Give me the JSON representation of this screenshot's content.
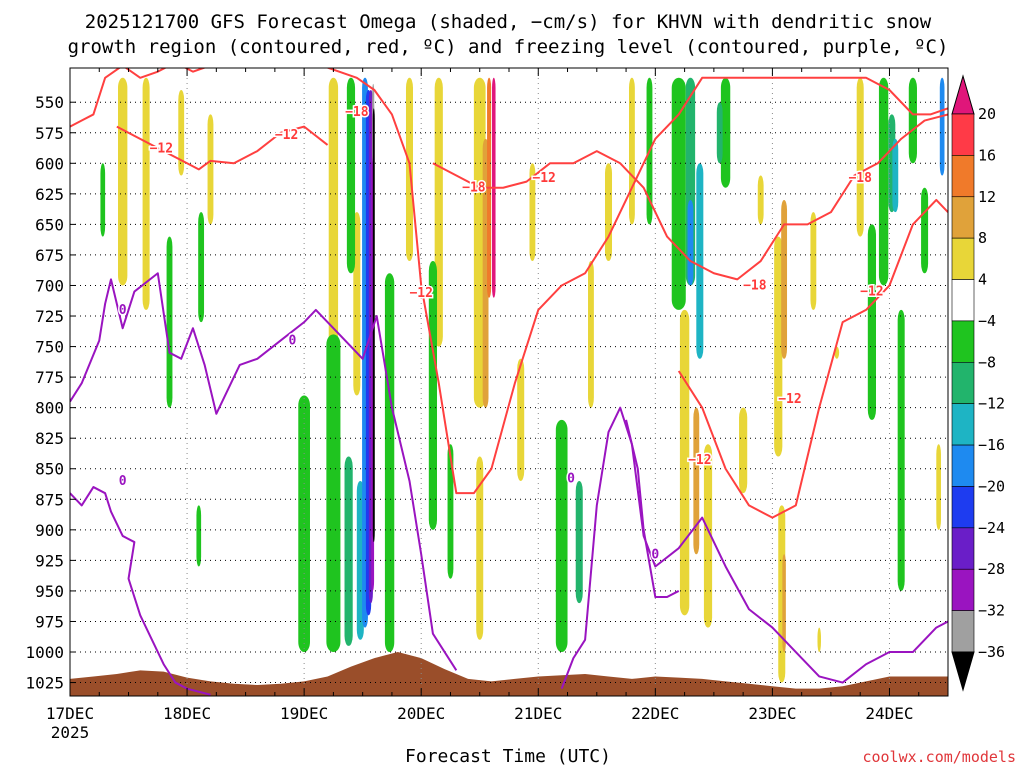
{
  "chart_data": {
    "type": "heatmap",
    "title_line1": "2025121700 GFS Forecast Omega (shaded, −cm/s) for KHVN with dendritic snow",
    "title_line2": "growth region (contoured, red, ºC) and freezing level (contoured, purple, ºC)",
    "xlabel": "Forecast Time (UTC)",
    "credit": "coolwx.com/models",
    "x_start_label": "17DEC",
    "x_year_label": "2025",
    "x_days": [
      "18DEC",
      "19DEC",
      "20DEC",
      "21DEC",
      "22DEC",
      "23DEC",
      "24DEC"
    ],
    "x_range_days": [
      0,
      7.5
    ],
    "y_levels": [
      550,
      575,
      600,
      625,
      650,
      675,
      700,
      725,
      750,
      775,
      800,
      825,
      850,
      875,
      900,
      925,
      950,
      975,
      1000,
      1025
    ],
    "y_range_hpa": [
      522,
      1036
    ],
    "colorbar": {
      "ticks": [
        "20",
        "16",
        "12",
        "8",
        "4",
        "−4",
        "−8",
        "−12",
        "−16",
        "−20",
        "−24",
        "−28",
        "−32",
        "−36"
      ],
      "bins": [
        {
          "from": 20,
          "to": 16,
          "color": "#ff3a47"
        },
        {
          "from": 16,
          "to": 12,
          "color": "#f07a2a"
        },
        {
          "from": 12,
          "to": 8,
          "color": "#e0a23a"
        },
        {
          "from": 8,
          "to": 4,
          "color": "#e8d638"
        },
        {
          "from": 4,
          "to": -4,
          "color": "#ffffff"
        },
        {
          "from": -4,
          "to": -8,
          "color": "#1fc41f"
        },
        {
          "from": -8,
          "to": -12,
          "color": "#22b46c"
        },
        {
          "from": -12,
          "to": -16,
          "color": "#1eb4c4"
        },
        {
          "from": -16,
          "to": -20,
          "color": "#1e8af0"
        },
        {
          "from": -20,
          "to": -24,
          "color": "#1e3cf0"
        },
        {
          "from": -24,
          "to": -28,
          "color": "#6a1ec8"
        },
        {
          "from": -28,
          "to": -32,
          "color": "#9a14c0"
        },
        {
          "from": -32,
          "to": -36,
          "color": "#a0a0a0"
        }
      ],
      "top_arrow_color": "#e0167a",
      "bottom_arrow_color": "#000000"
    },
    "omega_fields": [
      {
        "day": 0.45,
        "width": 0.08,
        "top": 530,
        "bottom": 700,
        "value": 6
      },
      {
        "day": 0.65,
        "width": 0.06,
        "top": 530,
        "bottom": 720,
        "value": 5
      },
      {
        "day": 0.95,
        "width": 0.05,
        "top": 540,
        "bottom": 610,
        "value": 5
      },
      {
        "day": 1.2,
        "width": 0.05,
        "top": 560,
        "bottom": 650,
        "value": 5
      },
      {
        "day": 0.28,
        "width": 0.04,
        "top": 600,
        "bottom": 660,
        "value": -6
      },
      {
        "day": 0.85,
        "width": 0.05,
        "top": 660,
        "bottom": 800,
        "value": -6
      },
      {
        "day": 1.12,
        "width": 0.05,
        "top": 640,
        "bottom": 730,
        "value": -6
      },
      {
        "day": 1.1,
        "width": 0.04,
        "top": 880,
        "bottom": 930,
        "value": -6
      },
      {
        "day": 2.25,
        "width": 0.08,
        "top": 530,
        "bottom": 760,
        "value": 5
      },
      {
        "day": 2.45,
        "width": 0.06,
        "top": 640,
        "bottom": 790,
        "value": 5
      },
      {
        "day": 2.0,
        "width": 0.1,
        "top": 790,
        "bottom": 1000,
        "value": -6
      },
      {
        "day": 2.25,
        "width": 0.12,
        "top": 740,
        "bottom": 1000,
        "value": -7
      },
      {
        "day": 2.38,
        "width": 0.07,
        "top": 840,
        "bottom": 995,
        "value": -10
      },
      {
        "day": 2.4,
        "width": 0.07,
        "top": 530,
        "bottom": 690,
        "value": -7
      },
      {
        "day": 2.48,
        "width": 0.06,
        "top": 860,
        "bottom": 990,
        "value": -14
      },
      {
        "day": 2.52,
        "width": 0.05,
        "top": 530,
        "bottom": 980,
        "value": -18
      },
      {
        "day": 2.55,
        "width": 0.045,
        "top": 540,
        "bottom": 970,
        "value": -22
      },
      {
        "day": 2.57,
        "width": 0.035,
        "top": 540,
        "bottom": 960,
        "value": -26
      },
      {
        "day": 2.585,
        "width": 0.025,
        "top": 545,
        "bottom": 950,
        "value": -30
      },
      {
        "day": 2.59,
        "width": 0.018,
        "top": 535,
        "bottom": 600,
        "value": -34
      },
      {
        "day": 2.595,
        "width": 0.017,
        "top": 555,
        "bottom": 910,
        "value": -40
      },
      {
        "day": 2.73,
        "width": 0.08,
        "top": 690,
        "bottom": 1000,
        "value": -6
      },
      {
        "day": 2.9,
        "width": 0.06,
        "top": 530,
        "bottom": 680,
        "value": 6
      },
      {
        "day": 3.15,
        "width": 0.07,
        "top": 530,
        "bottom": 750,
        "value": 5
      },
      {
        "day": 3.1,
        "width": 0.07,
        "top": 680,
        "bottom": 900,
        "value": -6
      },
      {
        "day": 3.5,
        "width": 0.1,
        "top": 530,
        "bottom": 800,
        "value": 6
      },
      {
        "day": 3.55,
        "width": 0.05,
        "top": 580,
        "bottom": 800,
        "value": 10
      },
      {
        "day": 3.58,
        "width": 0.035,
        "top": 530,
        "bottom": 710,
        "value": 14
      },
      {
        "day": 3.62,
        "width": 0.03,
        "top": 530,
        "bottom": 710,
        "value": 22
      },
      {
        "day": 3.25,
        "width": 0.05,
        "top": 830,
        "bottom": 940,
        "value": -6
      },
      {
        "day": 3.5,
        "width": 0.06,
        "top": 840,
        "bottom": 990,
        "value": 5
      },
      {
        "day": 3.85,
        "width": 0.06,
        "top": 760,
        "bottom": 860,
        "value": 5
      },
      {
        "day": 4.2,
        "width": 0.1,
        "top": 810,
        "bottom": 1000,
        "value": -6
      },
      {
        "day": 4.35,
        "width": 0.06,
        "top": 860,
        "bottom": 960,
        "value": -9
      },
      {
        "day": 4.45,
        "width": 0.05,
        "top": 680,
        "bottom": 800,
        "value": 5
      },
      {
        "day": 3.95,
        "width": 0.05,
        "top": 600,
        "bottom": 680,
        "value": 5
      },
      {
        "day": 4.6,
        "width": 0.06,
        "top": 600,
        "bottom": 680,
        "value": 5
      },
      {
        "day": 4.8,
        "width": 0.05,
        "top": 530,
        "bottom": 650,
        "value": 5
      },
      {
        "day": 4.95,
        "width": 0.05,
        "top": 530,
        "bottom": 650,
        "value": -6
      },
      {
        "day": 5.2,
        "width": 0.12,
        "top": 530,
        "bottom": 720,
        "value": -7
      },
      {
        "day": 5.3,
        "width": 0.08,
        "top": 530,
        "bottom": 700,
        "value": -10
      },
      {
        "day": 5.38,
        "width": 0.06,
        "top": 600,
        "bottom": 760,
        "value": -14
      },
      {
        "day": 5.3,
        "width": 0.05,
        "top": 630,
        "bottom": 700,
        "value": -18
      },
      {
        "day": 5.25,
        "width": 0.08,
        "top": 720,
        "bottom": 970,
        "value": 6
      },
      {
        "day": 5.35,
        "width": 0.05,
        "top": 800,
        "bottom": 920,
        "value": 10
      },
      {
        "day": 5.45,
        "width": 0.07,
        "top": 830,
        "bottom": 980,
        "value": 5
      },
      {
        "day": 5.6,
        "width": 0.08,
        "top": 530,
        "bottom": 620,
        "value": -6
      },
      {
        "day": 5.55,
        "width": 0.05,
        "top": 550,
        "bottom": 600,
        "value": -9
      },
      {
        "day": 5.75,
        "width": 0.07,
        "top": 800,
        "bottom": 870,
        "value": 5
      },
      {
        "day": 5.9,
        "width": 0.05,
        "top": 610,
        "bottom": 650,
        "value": 5
      },
      {
        "day": 6.05,
        "width": 0.07,
        "top": 660,
        "bottom": 840,
        "value": 5
      },
      {
        "day": 6.1,
        "width": 0.05,
        "top": 630,
        "bottom": 760,
        "value": 10
      },
      {
        "day": 6.08,
        "width": 0.06,
        "top": 880,
        "bottom": 1025,
        "value": 5
      },
      {
        "day": 6.1,
        "width": 0.03,
        "top": 920,
        "bottom": 1000,
        "value": 10
      },
      {
        "day": 6.35,
        "width": 0.05,
        "top": 640,
        "bottom": 720,
        "value": 5
      },
      {
        "day": 6.4,
        "width": 0.03,
        "top": 980,
        "bottom": 1000,
        "value": 5
      },
      {
        "day": 6.55,
        "width": 0.04,
        "top": 750,
        "bottom": 760,
        "value": 5
      },
      {
        "day": 6.75,
        "width": 0.06,
        "top": 530,
        "bottom": 660,
        "value": 5
      },
      {
        "day": 6.85,
        "width": 0.07,
        "top": 650,
        "bottom": 810,
        "value": -6
      },
      {
        "day": 6.95,
        "width": 0.08,
        "top": 530,
        "bottom": 700,
        "value": -7
      },
      {
        "day": 7.02,
        "width": 0.06,
        "top": 560,
        "bottom": 640,
        "value": -10
      },
      {
        "day": 7.05,
        "width": 0.05,
        "top": 580,
        "bottom": 640,
        "value": -14
      },
      {
        "day": 7.1,
        "width": 0.06,
        "top": 720,
        "bottom": 950,
        "value": -6
      },
      {
        "day": 7.2,
        "width": 0.07,
        "top": 530,
        "bottom": 600,
        "value": -7
      },
      {
        "day": 7.3,
        "width": 0.06,
        "top": 620,
        "bottom": 690,
        "value": -7
      },
      {
        "day": 7.45,
        "width": 0.04,
        "top": 530,
        "bottom": 610,
        "value": -20
      },
      {
        "day": 7.42,
        "width": 0.04,
        "top": 830,
        "bottom": 900,
        "value": 5
      }
    ],
    "freezing_level_0C": [
      {
        "x": [
          0.0,
          0.1,
          0.25,
          0.3,
          0.35,
          0.45,
          0.55,
          0.75,
          0.85,
          0.95,
          1.05,
          1.15,
          1.25,
          1.45,
          1.6,
          1.8,
          2.0,
          2.1,
          2.3,
          2.5,
          2.62,
          2.75,
          2.9,
          3.0,
          3.1,
          3.3
        ],
        "p": [
          795,
          780,
          745,
          715,
          695,
          735,
          705,
          690,
          755,
          760,
          735,
          765,
          805,
          765,
          760,
          745,
          730,
          720,
          740,
          760,
          725,
          800,
          860,
          920,
          985,
          1015
        ]
      },
      {
        "x": [
          0.0,
          0.1,
          0.2,
          0.3,
          0.35,
          0.45,
          0.55,
          0.5,
          0.6,
          0.8,
          0.9,
          1.0,
          1.2
        ],
        "p": [
          870,
          880,
          865,
          870,
          885,
          905,
          910,
          940,
          970,
          1010,
          1025,
          1030,
          1035
        ]
      },
      {
        "x": [
          4.2,
          4.3,
          4.4,
          4.5,
          4.6,
          4.7,
          4.8,
          4.9,
          5.0,
          5.2,
          5.4,
          5.6,
          5.8,
          6.0,
          6.2,
          6.4,
          6.6,
          6.8,
          7.0,
          7.2,
          7.4,
          7.5
        ],
        "p": [
          1030,
          1005,
          990,
          880,
          820,
          800,
          830,
          905,
          930,
          915,
          890,
          930,
          965,
          980,
          1000,
          1020,
          1025,
          1010,
          1000,
          1000,
          980,
          975
        ]
      },
      {
        "x": [
          4.75,
          4.85,
          4.9,
          5.0,
          5.1,
          5.2
        ],
        "p": [
          810,
          850,
          900,
          955,
          955,
          950
        ]
      }
    ],
    "isotherm_minus12C": [
      {
        "x": [
          0.0,
          0.1,
          0.2,
          0.3,
          0.45,
          0.6,
          0.75,
          0.85,
          0.95,
          1.05,
          1.2,
          1.35,
          1.5,
          1.65,
          1.8,
          2.0,
          2.15,
          2.3,
          2.45,
          2.6,
          2.75,
          2.9,
          3.0,
          3.15,
          3.3,
          3.45,
          3.6,
          3.8,
          4.0,
          4.2,
          4.4,
          4.6,
          4.8,
          5.0,
          5.2,
          5.4,
          5.6,
          5.8,
          6.0,
          6.2,
          6.4,
          6.6,
          6.8,
          7.0,
          7.2,
          7.35,
          7.5
        ],
        "p": [
          570,
          565,
          560,
          530,
          520,
          530,
          525,
          520,
          520,
          525,
          520,
          518,
          516,
          518,
          520,
          518,
          520,
          525,
          530,
          540,
          560,
          600,
          700,
          780,
          870,
          870,
          850,
          780,
          720,
          700,
          690,
          660,
          620,
          580,
          560,
          530,
          530,
          530,
          530,
          530,
          530,
          530,
          530,
          540,
          560,
          560,
          555
        ]
      },
      {
        "x": [
          0.4,
          0.8,
          1.0,
          1.1,
          1.2,
          1.4,
          1.6,
          1.8,
          2.0,
          2.2
        ],
        "p": [
          570,
          590,
          600,
          605,
          598,
          600,
          590,
          575,
          570,
          585
        ]
      },
      {
        "x": [
          5.2,
          5.4,
          5.6,
          5.8,
          6.0,
          6.2,
          6.4,
          6.6,
          6.8,
          7.0,
          7.2,
          7.4,
          7.5
        ],
        "p": [
          770,
          800,
          850,
          880,
          890,
          880,
          800,
          730,
          720,
          700,
          650,
          630,
          640
        ]
      }
    ],
    "isotherm_minus18C": [
      {
        "x": [
          3.1,
          3.3,
          3.5,
          3.7,
          3.9,
          4.1,
          4.3,
          4.5,
          4.7,
          4.9,
          5.1,
          5.3,
          5.5,
          5.7,
          5.9,
          6.1,
          6.3,
          6.5,
          6.7,
          6.9,
          7.1,
          7.3,
          7.5
        ],
        "p": [
          600,
          610,
          620,
          620,
          615,
          600,
          600,
          590,
          600,
          620,
          660,
          680,
          690,
          695,
          680,
          650,
          650,
          640,
          610,
          600,
          580,
          565,
          560
        ]
      }
    ],
    "contour_labels": [
      {
        "text": "−12",
        "day": 0.78,
        "p": 588,
        "color": "#ff3a3a"
      },
      {
        "text": "−12",
        "day": 1.85,
        "p": 577,
        "color": "#ff3a3a"
      },
      {
        "text": "−12",
        "day": 4.05,
        "p": 612,
        "color": "#ff3a3a"
      },
      {
        "text": "−18",
        "day": 2.45,
        "p": 558,
        "color": "#ff3a3a"
      },
      {
        "text": "−18",
        "day": 3.45,
        "p": 620,
        "color": "#ff3a3a"
      },
      {
        "text": "−18",
        "day": 5.85,
        "p": 700,
        "color": "#ff3a3a"
      },
      {
        "text": "−18",
        "day": 6.75,
        "p": 612,
        "color": "#ff3a3a"
      },
      {
        "text": "−12",
        "day": 6.85,
        "p": 705,
        "color": "#ff3a3a"
      },
      {
        "text": "−12",
        "day": 6.15,
        "p": 793,
        "color": "#ff3a3a"
      },
      {
        "text": "−12",
        "day": 5.38,
        "p": 843,
        "color": "#ff3a3a"
      },
      {
        "text": "−12",
        "day": 3.0,
        "p": 706,
        "color": "#ff3a3a"
      },
      {
        "text": "0",
        "day": 0.45,
        "p": 720,
        "color": "#9a14c0"
      },
      {
        "text": "0",
        "day": 1.9,
        "p": 745,
        "color": "#9a14c0"
      },
      {
        "text": "0",
        "day": 0.45,
        "p": 860,
        "color": "#9a14c0"
      },
      {
        "text": "0",
        "day": 4.28,
        "p": 858,
        "color": "#9a14c0"
      },
      {
        "text": "0",
        "day": 5.0,
        "p": 920,
        "color": "#9a14c0"
      }
    ],
    "terrain": {
      "x": [
        0.0,
        0.2,
        0.4,
        0.6,
        0.8,
        1.0,
        1.2,
        1.4,
        1.6,
        1.8,
        2.0,
        2.2,
        2.4,
        2.6,
        2.8,
        3.0,
        3.2,
        3.4,
        3.6,
        3.8,
        4.0,
        4.2,
        4.4,
        4.6,
        4.8,
        5.0,
        5.2,
        5.4,
        5.6,
        5.8,
        6.0,
        6.2,
        6.4,
        6.6,
        6.8,
        7.0,
        7.2,
        7.4,
        7.5
      ],
      "p": [
        1022,
        1020,
        1018,
        1015,
        1016,
        1021,
        1024,
        1026,
        1027,
        1026,
        1024,
        1020,
        1012,
        1005,
        1000,
        1005,
        1014,
        1022,
        1024,
        1022,
        1020,
        1019,
        1018,
        1020,
        1022,
        1020,
        1021,
        1022,
        1024,
        1026,
        1028,
        1030,
        1030,
        1028,
        1024,
        1020,
        1020,
        1020,
        1020
      ],
      "color": "#9a4e2a"
    }
  }
}
